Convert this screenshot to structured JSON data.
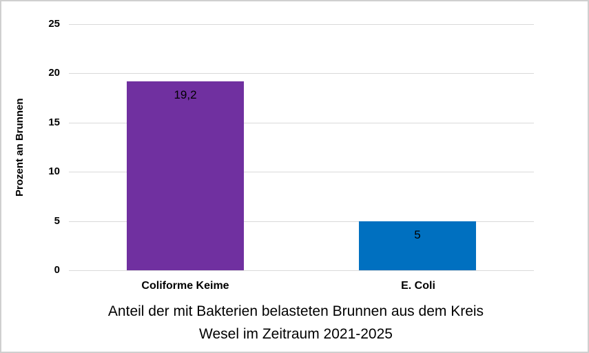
{
  "chart_data": {
    "type": "bar",
    "title": "Anteil der mit Bakterien belasteten Brunnen aus dem Kreis Wesel im Zeitraum 2021-2025",
    "title_lines": [
      "Anteil der mit Bakterien belasteten Brunnen aus dem Kreis",
      "Wesel im Zeitraum 2021-2025"
    ],
    "xlabel": "",
    "ylabel": "Prozent an Brunnen",
    "categories": [
      "Coliforme Keime",
      "E. Coli"
    ],
    "values": [
      19.2,
      5
    ],
    "value_labels": [
      "19,2",
      "5"
    ],
    "bar_colors": [
      "#7030A0",
      "#0070C0"
    ],
    "ylim": [
      0,
      25
    ],
    "yticks": [
      0,
      5,
      10,
      15,
      20,
      25
    ],
    "ytick_labels": [
      "0",
      "5",
      "10",
      "15",
      "20",
      "25"
    ],
    "grid": true,
    "legend_position": "none",
    "gridline_color": "#D9D9D9",
    "background_color": "#FFFFFF"
  }
}
